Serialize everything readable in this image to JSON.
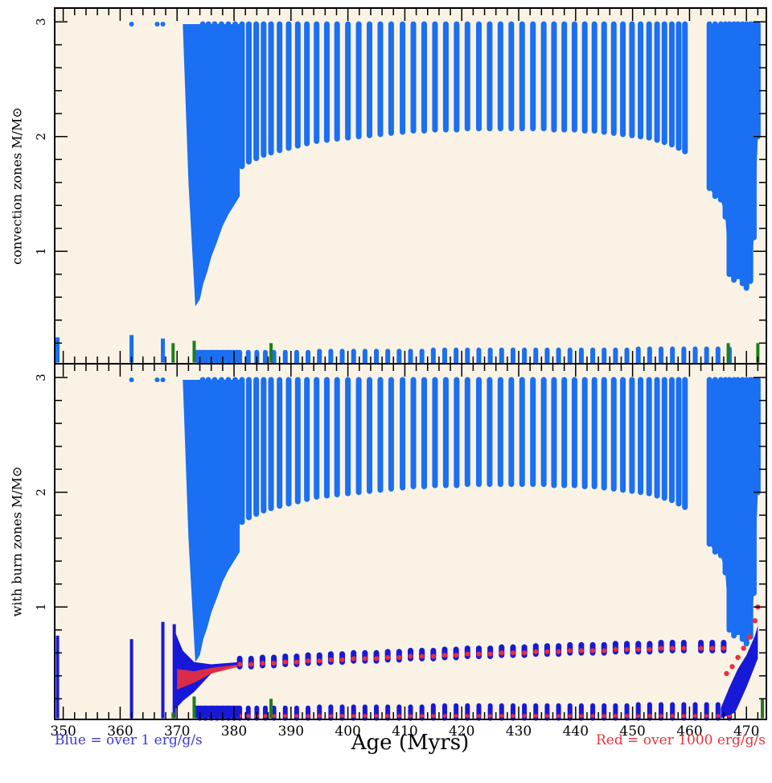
{
  "chart_data": [
    {
      "type": "scatter",
      "panel": "top",
      "ylabel": "convection zones M/M⊙",
      "xlabel": "",
      "xlim": [
        348.5,
        473.5
      ],
      "ylim": [
        0.02,
        3.12
      ],
      "x_ticks": [
        "350",
        "360",
        "370",
        "380",
        "390",
        "400",
        "410",
        "420",
        "430",
        "440",
        "450",
        "460",
        "470"
      ],
      "y_ticks": [
        "1",
        "2",
        "3"
      ],
      "background": "#faf3e5",
      "series": [
        {
          "role": "convection-envelope-columns",
          "color": "#1a6ff2",
          "x": [
            374.5,
            375.5,
            376.6,
            377.8,
            379.0,
            380.2,
            381.4,
            382.6,
            383.9,
            385.2,
            386.5,
            388.0,
            389.6,
            391.2,
            392.8,
            394.5,
            396.3,
            398.1,
            400.0,
            401.9,
            403.8,
            405.7,
            407.6,
            409.6,
            411.5,
            413.4,
            415.3,
            417.2,
            419.1,
            421.0,
            423.0,
            424.9,
            426.8,
            428.7,
            430.6,
            432.5,
            434.4,
            436.2,
            438.0,
            439.8,
            441.6,
            443.3,
            445.0,
            446.7,
            448.3,
            449.9,
            451.4,
            452.9,
            454.3,
            455.6,
            456.9,
            458.1,
            459.2
          ],
          "y_bottom": [
            1.26,
            1.4,
            1.5,
            1.58,
            1.65,
            1.7,
            1.74,
            1.78,
            1.81,
            1.84,
            1.86,
            1.88,
            1.9,
            1.92,
            1.94,
            1.96,
            1.97,
            1.98,
            1.99,
            2.0,
            2.01,
            2.02,
            2.03,
            2.04,
            2.05,
            2.05,
            2.06,
            2.06,
            2.06,
            2.07,
            2.07,
            2.07,
            2.07,
            2.07,
            2.07,
            2.07,
            2.07,
            2.06,
            2.06,
            2.06,
            2.05,
            2.05,
            2.04,
            2.03,
            2.02,
            2.01,
            2.0,
            1.99,
            1.97,
            1.95,
            1.93,
            1.9,
            1.87
          ],
          "y_top": 2.98
        },
        {
          "role": "convection-envelope-dip",
          "color": "#1a6ff2",
          "x": [
            371.0,
            372.0,
            373.2,
            374.0,
            374.6,
            375.3,
            376.0,
            377.0,
            378.0,
            379.0,
            380.0,
            381.0
          ],
          "y_bottom": [
            2.98,
            1.6,
            0.52,
            0.58,
            0.72,
            0.82,
            0.95,
            1.08,
            1.22,
            1.32,
            1.4,
            1.48
          ]
        },
        {
          "role": "late-convection-envelope",
          "color": "#1a6ff2",
          "x": [
            463.5,
            464.5,
            465.5,
            466.3,
            467.0,
            467.8,
            468.5,
            469.3,
            470.0,
            470.7,
            471.3,
            472.0
          ],
          "y_bottom": [
            1.55,
            1.48,
            1.45,
            1.3,
            0.8,
            0.75,
            0.78,
            0.72,
            0.68,
            0.74,
            1.12,
            2.0
          ]
        },
        {
          "role": "isolated-points",
          "color": "#1a6ff2",
          "x": [
            362.0,
            366.5,
            367.5
          ],
          "y": [
            2.98,
            2.98,
            2.98
          ]
        },
        {
          "role": "core-convection-bars",
          "color": "#1a6ff2",
          "x": [
            374.0,
            375.0,
            376.0,
            377.0,
            378.0,
            379.0,
            380.0,
            381.0,
            382.5,
            384.0,
            385.5,
            387.0,
            389.0,
            391.0,
            393.0,
            395.0,
            397.0,
            399.0,
            401.0,
            403.0,
            405.0,
            407.0,
            409.0,
            411.0,
            413.0,
            415.0,
            417.0,
            419.0,
            421.0,
            423.0,
            425.0,
            427.0,
            429.0,
            431.0,
            433.0,
            435.0,
            437.0,
            439.0,
            441.0,
            443.0,
            445.0,
            447.0,
            449.0,
            451.0,
            453.0,
            455.0,
            457.0,
            459.0,
            461.0,
            463.0,
            465.0,
            467.0
          ],
          "y_top": [
            0.12,
            0.12,
            0.12,
            0.12,
            0.12,
            0.12,
            0.12,
            0.12,
            0.12,
            0.12,
            0.12,
            0.12,
            0.12,
            0.12,
            0.12,
            0.13,
            0.13,
            0.13,
            0.13,
            0.13,
            0.13,
            0.13,
            0.13,
            0.13,
            0.13,
            0.14,
            0.14,
            0.14,
            0.14,
            0.14,
            0.14,
            0.14,
            0.14,
            0.14,
            0.14,
            0.14,
            0.14,
            0.14,
            0.14,
            0.14,
            0.14,
            0.14,
            0.14,
            0.15,
            0.15,
            0.15,
            0.15,
            0.15,
            0.15,
            0.15,
            0.15,
            0.15
          ]
        },
        {
          "role": "green-markers",
          "color": "#1e7d1e",
          "x": [
            369.3,
            373.0,
            386.5,
            466.8,
            472.0
          ],
          "y_top": [
            0.2,
            0.22,
            0.2,
            0.2,
            0.2
          ]
        }
      ]
    },
    {
      "type": "scatter",
      "panel": "bottom",
      "ylabel": "with burn zones M/M⊙",
      "xlabel": "Age (Myrs)",
      "xlim": [
        348.5,
        473.5
      ],
      "ylim": [
        0.02,
        3.12
      ],
      "x_ticks": [
        "350",
        "360",
        "370",
        "380",
        "390",
        "400",
        "410",
        "420",
        "430",
        "440",
        "450",
        "460",
        "470"
      ],
      "y_ticks": [
        "1",
        "2",
        "3"
      ],
      "background": "#faf3e5",
      "series": [
        {
          "role": "burn-shell-blue",
          "color": "#1818d8",
          "x": [
            381,
            383,
            385,
            387,
            389,
            391,
            393,
            395,
            397,
            399,
            401,
            403,
            405,
            407,
            409,
            411,
            413,
            415,
            417,
            419,
            421,
            423,
            425,
            427,
            429,
            431,
            433,
            435,
            437,
            439,
            441,
            443,
            445,
            447,
            449,
            451,
            453,
            455,
            457,
            459,
            462,
            464,
            466
          ],
          "y": [
            0.52,
            0.52,
            0.53,
            0.53,
            0.54,
            0.54,
            0.55,
            0.55,
            0.56,
            0.56,
            0.57,
            0.57,
            0.57,
            0.58,
            0.58,
            0.59,
            0.59,
            0.59,
            0.6,
            0.6,
            0.61,
            0.61,
            0.61,
            0.62,
            0.62,
            0.62,
            0.63,
            0.63,
            0.63,
            0.64,
            0.64,
            0.64,
            0.64,
            0.65,
            0.65,
            0.65,
            0.65,
            0.66,
            0.66,
            0.66,
            0.66,
            0.66,
            0.66
          ]
        },
        {
          "role": "burn-shell-red",
          "color": "#f02d3a",
          "x": [
            381,
            383,
            385,
            387,
            389,
            391,
            393,
            395,
            397,
            399,
            401,
            403,
            405,
            407,
            409,
            411,
            413,
            415,
            417,
            419,
            421,
            423,
            425,
            427,
            429,
            431,
            433,
            435,
            437,
            439,
            441,
            443,
            445,
            447,
            449,
            451,
            453,
            455,
            457,
            459,
            462,
            464,
            466
          ],
          "y": [
            0.5,
            0.5,
            0.51,
            0.51,
            0.52,
            0.52,
            0.53,
            0.53,
            0.54,
            0.54,
            0.55,
            0.55,
            0.55,
            0.56,
            0.56,
            0.57,
            0.57,
            0.57,
            0.58,
            0.58,
            0.59,
            0.59,
            0.59,
            0.6,
            0.6,
            0.6,
            0.61,
            0.61,
            0.61,
            0.62,
            0.62,
            0.62,
            0.62,
            0.63,
            0.63,
            0.63,
            0.63,
            0.64,
            0.64,
            0.64,
            0.64,
            0.64,
            0.64
          ]
        },
        {
          "role": "early-burn-spikes",
          "color": "#1818d8",
          "x": [
            349.0,
            362.0,
            367.5,
            369.5
          ],
          "y_top": [
            0.75,
            0.72,
            0.87,
            0.85
          ]
        },
        {
          "role": "late-red-rise",
          "color": "#f02d3a",
          "x": [
            466.5,
            467.5,
            468.5,
            469.5,
            470.5,
            471.5,
            472.0
          ],
          "y": [
            0.42,
            0.48,
            0.56,
            0.64,
            0.74,
            0.88,
            1.0
          ]
        },
        {
          "role": "core-red-marks",
          "color": "#f02d3a",
          "y": 0.05
        }
      ]
    }
  ],
  "notes": {
    "blue": "Blue = over 1 erg/g/s",
    "red": "Red = over 1000 erg/g/s"
  }
}
